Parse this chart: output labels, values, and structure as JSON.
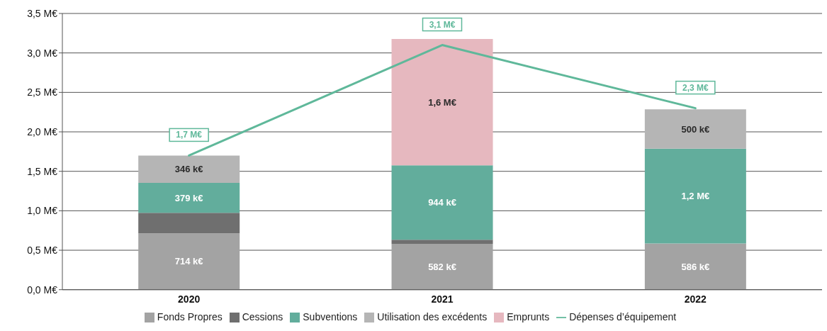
{
  "chart_data": {
    "type": "bar",
    "stacked": true,
    "categories": [
      "2020",
      "2021",
      "2022"
    ],
    "series": [
      {
        "name": "Fonds Propres",
        "color": "#a3a3a3",
        "values": [
          0.714,
          0.582,
          0.586
        ],
        "value_labels": [
          "714 k€",
          "582 k€",
          "586 k€"
        ]
      },
      {
        "name": "Cessions",
        "color": "#6f6f6f",
        "values": [
          0.26,
          0.05,
          null
        ]
      },
      {
        "name": "Subventions",
        "color": "#62ad9c",
        "values": [
          0.379,
          0.944,
          1.2
        ],
        "value_labels": [
          "379 k€",
          "944 k€",
          "1,2 M€"
        ]
      },
      {
        "name": "Utilisation des excédents",
        "color": "#b5b5b5",
        "values": [
          0.346,
          null,
          0.5
        ],
        "value_labels": [
          "346 k€",
          null,
          "500 k€"
        ]
      },
      {
        "name": "Emprunts",
        "color": "#e6b8bf",
        "values": [
          null,
          1.6,
          null
        ],
        "value_labels": [
          null,
          "1,6 M€",
          null
        ]
      },
      {
        "name": "Dépenses d’équipement",
        "type": "line",
        "color": "#5fb89a",
        "values": [
          1.7,
          3.1,
          2.3
        ],
        "value_labels": [
          "1,7 M€",
          "3,1 M€",
          "2,3 M€"
        ]
      }
    ],
    "ylim": [
      0,
      3.5
    ],
    "yticks": [
      {
        "value": 0,
        "label": "0,0 M€"
      },
      {
        "value": 0.5,
        "label": "0,5 M€"
      },
      {
        "value": 1,
        "label": "1,0 M€"
      },
      {
        "value": 1.5,
        "label": "1,5 M€"
      },
      {
        "value": 2,
        "label": "2,0 M€"
      },
      {
        "value": 2.5,
        "label": "2,5 M€"
      },
      {
        "value": 3,
        "label": "3,0 M€"
      },
      {
        "value": 3.5,
        "label": "3,5 M€"
      }
    ],
    "grid": "y",
    "legend": "bottom",
    "marker": "none"
  }
}
